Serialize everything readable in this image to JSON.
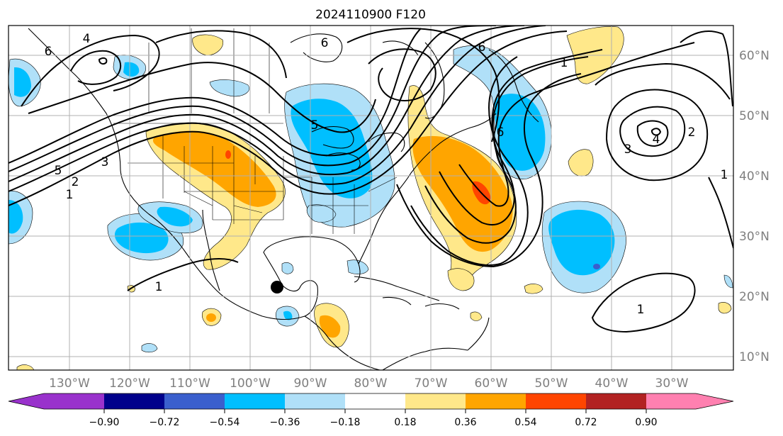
{
  "title": "2024110900 F120",
  "lon_labels": [
    "130°W",
    "120°W",
    "110°W",
    "100°W",
    "90°W",
    "80°W",
    "70°W",
    "60°W",
    "50°W",
    "40°W",
    "30°W"
  ],
  "lat_labels": [
    "60°N",
    "50°N",
    "40°N",
    "30°N",
    "20°N",
    "10°N"
  ],
  "colorbar": {
    "labels": [
      "−0.90",
      "−0.72",
      "−0.54",
      "−0.36",
      "−0.18",
      "0.18",
      "0.36",
      "0.54",
      "0.72",
      "0.90"
    ],
    "colors": [
      "#9932cc",
      "#00008b",
      "#3a5fcd",
      "#00bfff",
      "#b0e0f8",
      "#ffffff",
      "#ffe88a",
      "#ffa500",
      "#ff4500",
      "#b22222",
      "#ff80b0"
    ]
  },
  "contour_labels": [
    "6",
    "4",
    "6",
    "6",
    "5",
    "3",
    "5",
    "1",
    "2",
    "2",
    "3",
    "4",
    "1",
    "1",
    "1",
    "1",
    "6"
  ],
  "marker": {
    "name": "storm-position",
    "color": "#000000"
  }
}
